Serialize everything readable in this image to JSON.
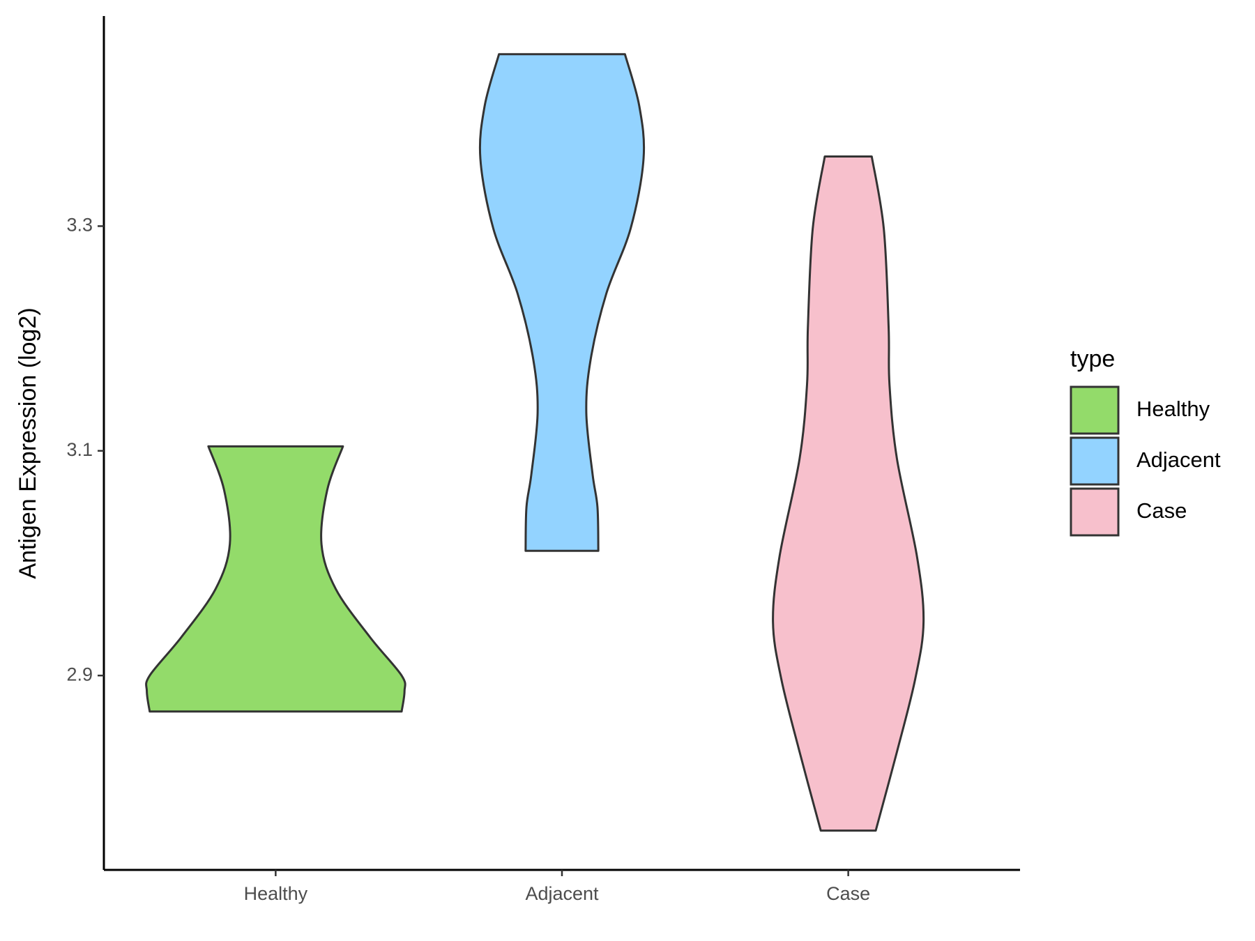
{
  "chart_data": {
    "type": "violin",
    "y_label": "Antigen Expression (log2)",
    "categories": [
      "Healthy",
      "Adjacent",
      "Case"
    ],
    "legend_title": "type",
    "legend_position": "right",
    "ylim": [
      2.727,
      3.487
    ],
    "yticks": [
      2.9,
      3.1,
      3.3
    ],
    "series": [
      {
        "name": "Healthy",
        "color": "#93db6a",
        "y": [
          3.104,
          3.065,
          3.017,
          2.977,
          2.934,
          2.9,
          2.886,
          2.868
        ],
        "density": [
          0.235,
          0.18,
          0.16,
          0.21,
          0.33,
          0.44,
          0.45,
          0.44
        ]
      },
      {
        "name": "Adjacent",
        "color": "#93d3ff",
        "y": [
          3.453,
          3.407,
          3.36,
          3.298,
          3.24,
          3.181,
          3.134,
          3.079,
          3.05,
          3.011
        ],
        "density": [
          0.22,
          0.27,
          0.285,
          0.24,
          0.155,
          0.1,
          0.085,
          0.107,
          0.124,
          0.127
        ]
      },
      {
        "name": "Case",
        "color": "#f7c0cc",
        "y": [
          3.362,
          3.298,
          3.21,
          3.159,
          3.093,
          3.006,
          2.948,
          2.897,
          2.832,
          2.762
        ],
        "density": [
          0.082,
          0.124,
          0.141,
          0.144,
          0.17,
          0.24,
          0.263,
          0.234,
          0.17,
          0.096
        ]
      }
    ]
  }
}
